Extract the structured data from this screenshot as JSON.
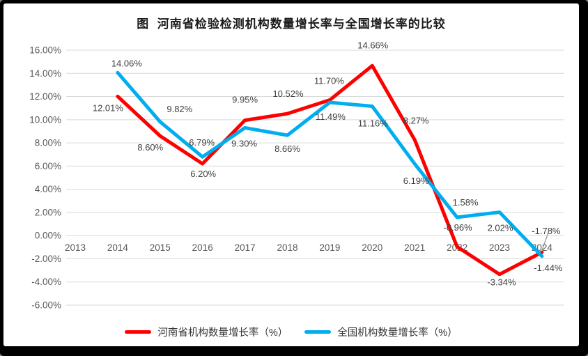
{
  "window": {
    "frame_color": "#000000",
    "panel_color": "#ffffff"
  },
  "chart_data": {
    "type": "line",
    "title": "图  河南省检验检测机构数量增长率与全国增长率的比较",
    "categories": [
      "2013",
      "2014",
      "2015",
      "2016",
      "2017",
      "2018",
      "2019",
      "2020",
      "2021",
      "2022",
      "2023",
      "2024"
    ],
    "y_axis": {
      "min": -6,
      "max": 16,
      "step": 2,
      "tick_labels": [
        "16.00%",
        "14.00%",
        "12.00%",
        "10.00%",
        "8.00%",
        "6.00%",
        "4.00%",
        "2.00%",
        "0.00%",
        "-2.00%",
        "-4.00%",
        "-6.00%"
      ]
    },
    "grid": true,
    "legend_position": "bottom",
    "series": [
      {
        "name": "河南省机构数量增长率（%）",
        "color": "#FF0000",
        "start_index": 1,
        "values": [
          12.01,
          8.6,
          6.2,
          9.95,
          10.52,
          11.7,
          14.66,
          8.27,
          -0.96,
          -3.34,
          -1.44
        ],
        "labels": [
          "12.01%",
          "8.60%",
          "6.20%",
          "9.95%",
          "10.52%",
          "11.70%",
          "14.66%",
          "8.27%",
          "-0.96%",
          "-3.34%",
          "-1.44%"
        ]
      },
      {
        "name": "全国机构数量增长率（%）",
        "color": "#00AEEF",
        "start_index": 1,
        "values": [
          14.06,
          9.82,
          6.79,
          9.3,
          8.66,
          11.49,
          11.16,
          6.19,
          1.58,
          2.02,
          -1.78
        ],
        "labels": [
          "14.06%",
          "9.82%",
          "6.79%",
          "9.30%",
          "8.66%",
          "11.49%",
          "11.16%",
          "6.19%",
          "1.58%",
          "2.02%",
          "-1.78%"
        ]
      }
    ],
    "layout": {
      "label_offsets": [
        [
          [
            -14,
            17
          ],
          [
            -14,
            17
          ],
          [
            1,
            15
          ],
          [
            0,
            -29
          ],
          [
            1,
            -28
          ],
          [
            -1,
            -27
          ],
          [
            1,
            -29
          ],
          [
            2,
            -27
          ],
          [
            1,
            -27
          ],
          [
            3,
            12
          ],
          [
            9,
            23
          ]
        ],
        [
          [
            13,
            -13
          ],
          [
            28,
            -18
          ],
          [
            -1,
            -20
          ],
          [
            -1,
            23
          ],
          [
            0,
            20
          ],
          [
            1,
            21
          ],
          [
            1,
            25
          ],
          [
            2,
            25
          ],
          [
            12,
            -21
          ],
          [
            1,
            23
          ],
          [
            6,
            -36
          ]
        ]
      ]
    },
    "colors": {
      "gridline": "#D9D9D9",
      "tick_text": "#595959",
      "data_label_text": "#3f3f3f"
    }
  }
}
